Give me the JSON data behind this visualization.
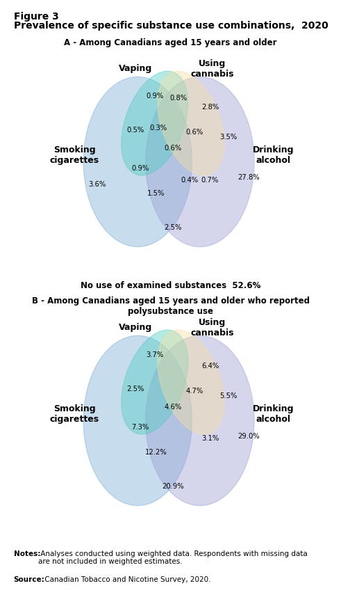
{
  "title_line1": "Figure 3",
  "title_line2": "Prevalence of specific substance use combinations,  2020",
  "subtitle_A": "A - Among Canadians aged 15 years and older",
  "subtitle_B": "B - Among Canadians aged 15 years and older who reported\npolysubstance use",
  "no_use_text": "No use of examined substances  52.6%",
  "notes_bold": "Notes:",
  "notes_text": " Analyses conducted using weighted data. Respondents with missing data\nare not included in weighted estimates.",
  "source_bold": "Source:",
  "source_text": " Canadian Tobacco and Nicotine Survey, 2020.",
  "diagram_A": {
    "labels": {
      "vaping": "Vaping",
      "cannabis": "Using\ncannabis",
      "smoking": "Smoking\ncigarettes",
      "alcohol": "Drinking\nalcohol"
    },
    "values": {
      "vaping_only": "0.9%",
      "cannabis_only": "2.8%",
      "smoking_only": "3.6%",
      "alcohol_only": "27.8%",
      "vaping_cannabis": "0.8%",
      "vaping_smoking": "0.5%",
      "cannabis_alcohol": "3.5%",
      "smoking_alcohol": "0.7%",
      "vaping_cannabis_smoking": "0.3%",
      "vaping_cannabis_alcohol": "0.6%",
      "vaping_smoking_alcohol": "0.9%",
      "cannabis_smoking_alcohol": "0.4%",
      "all_four": "0.6%",
      "smoking_alcohol_only": "1.5%",
      "alcohol_bottom": "2.5%"
    }
  },
  "diagram_B": {
    "labels": {
      "vaping": "Vaping",
      "cannabis": "Using\ncannabis",
      "smoking": "Smoking\ncigarettes",
      "alcohol": "Drinking\nalcohol"
    },
    "values": {
      "vaping_only": "3.7%",
      "cannabis_only": "6.4%",
      "smoking_only": "",
      "alcohol_only": "29.0%",
      "vaping_cannabis": "",
      "vaping_smoking": "2.5%",
      "cannabis_alcohol": "5.5%",
      "smoking_alcohol": "3.1%",
      "vaping_cannabis_smoking": "",
      "vaping_cannabis_alcohol": "4.7%",
      "vaping_smoking_alcohol": "7.3%",
      "cannabis_smoking_alcohol": "",
      "all_four": "4.6%",
      "smoking_alcohol_only": "12.2%",
      "alcohol_bottom": "20.9%"
    }
  },
  "colors": {
    "vaping": "#4ecdc4",
    "cannabis": "#f5dfa0",
    "smoking": "#7badd4",
    "alcohol": "#9b9fd4",
    "background": "#ffffff"
  },
  "ellipses_A": {
    "vaping": [
      4.55,
      6.9,
      2.6,
      4.8,
      -20
    ],
    "cannabis": [
      6.15,
      6.9,
      2.6,
      4.8,
      20
    ],
    "smoking": [
      3.8,
      5.2,
      4.8,
      7.5,
      0
    ],
    "alcohol": [
      6.55,
      5.2,
      4.8,
      7.5,
      0
    ]
  },
  "ellipses_B": {
    "vaping": [
      4.55,
      6.9,
      2.6,
      4.8,
      -20
    ],
    "cannabis": [
      6.15,
      6.9,
      2.6,
      4.8,
      20
    ],
    "smoking": [
      3.8,
      5.2,
      4.8,
      7.5,
      0
    ],
    "alcohol": [
      6.55,
      5.2,
      4.8,
      7.5,
      0
    ]
  }
}
